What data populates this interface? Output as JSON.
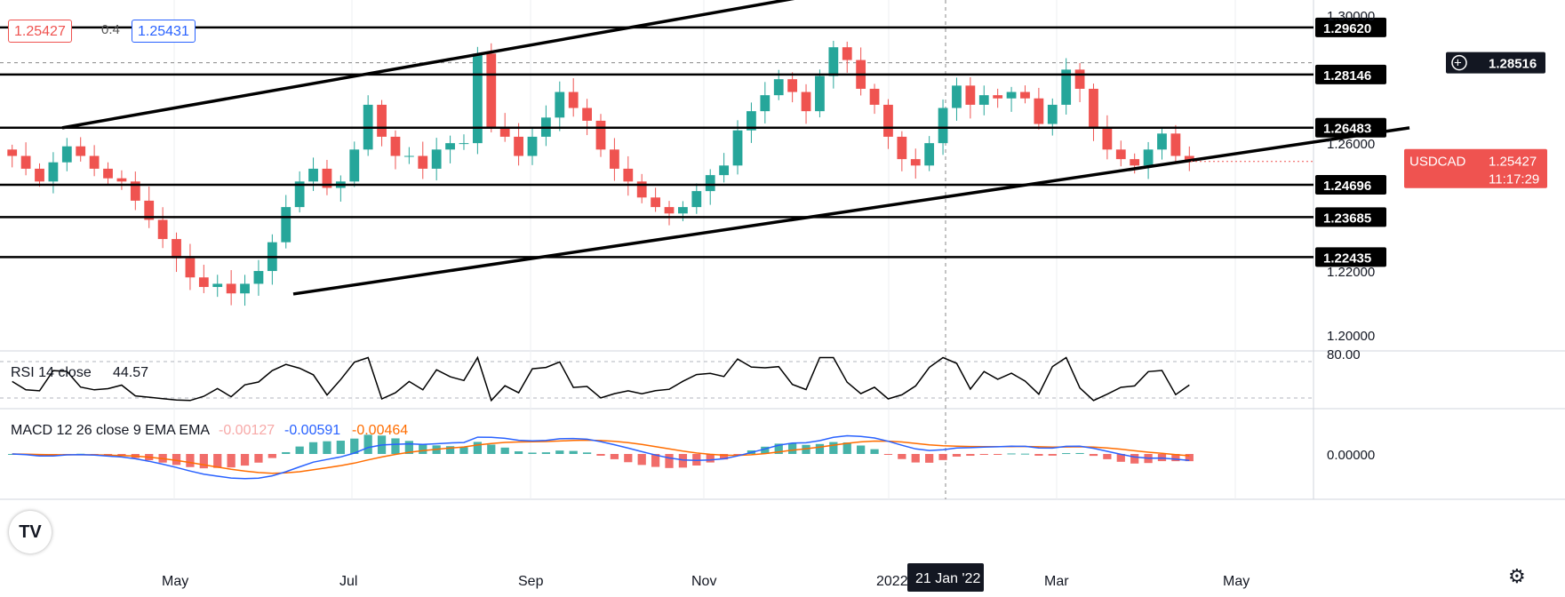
{
  "header": {
    "bid_price": "1.25427",
    "spread": "0.4",
    "ask_price": "1.25431"
  },
  "colors": {
    "up": "#26a69a",
    "down": "#ef5350",
    "rsi_line": "#000000",
    "macd_line": "#2962ff",
    "signal_line": "#ff6d00",
    "hist_up": "#26a69a",
    "hist_down": "#ef5350",
    "price_tag": "#ef5350"
  },
  "chart_data": [
    {
      "type": "candlestick",
      "symbol": "USDCAD",
      "yaxis_ticks": [
        "1.30000",
        "1.26000",
        "1.22000",
        "1.20000"
      ],
      "ylim": [
        1.195,
        1.302
      ],
      "x_ticks": [
        "May",
        "Jul",
        "Sep",
        "Nov",
        "2022",
        "Mar",
        "May"
      ],
      "crosshair_date": "21 Jan '22",
      "horizontal_levels": [
        "1.29620",
        "1.28146",
        "1.26483",
        "1.24696",
        "1.23685",
        "1.22435"
      ],
      "cursor_price": "1.28516",
      "last_price": "1.25427",
      "countdown": "11:17:29",
      "close_path": [
        1.256,
        1.252,
        1.248,
        1.254,
        1.259,
        1.256,
        1.252,
        1.249,
        1.248,
        1.242,
        1.236,
        1.23,
        1.224,
        1.218,
        1.215,
        1.216,
        1.213,
        1.216,
        1.22,
        1.229,
        1.24,
        1.248,
        1.252,
        1.246,
        1.248,
        1.258,
        1.272,
        1.262,
        1.256,
        1.256,
        1.252,
        1.258,
        1.26,
        1.26,
        1.288,
        1.265,
        1.262,
        1.256,
        1.262,
        1.268,
        1.276,
        1.271,
        1.267,
        1.258,
        1.252,
        1.248,
        1.243,
        1.24,
        1.238,
        1.24,
        1.245,
        1.25,
        1.253,
        1.264,
        1.27,
        1.275,
        1.28,
        1.276,
        1.27,
        1.281,
        1.29,
        1.286,
        1.277,
        1.272,
        1.262,
        1.255,
        1.253,
        1.26,
        1.271,
        1.278,
        1.272,
        1.275,
        1.274,
        1.276,
        1.274,
        1.266,
        1.272,
        1.283,
        1.277,
        1.265,
        1.258,
        1.255,
        1.253,
        1.258,
        1.263,
        1.256,
        1.2543
      ],
      "indicator_rsi": {
        "label": "RSI 14 close",
        "value": "44.57",
        "upper_tick": "80.00"
      },
      "indicator_macd": {
        "label": "MACD 12 26 close 9 EMA EMA",
        "histogram": "-0.00127",
        "macd": "-0.00591",
        "signal": "-0.00464",
        "zero_tick": "0.00000"
      }
    }
  ]
}
